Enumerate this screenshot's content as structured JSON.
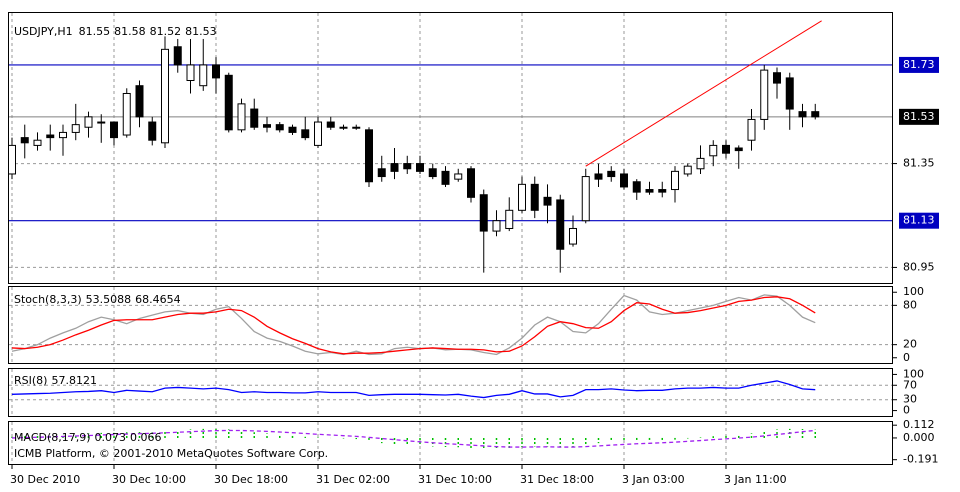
{
  "chart_data": [
    {
      "type": "candlestick",
      "symbol": "USDJPY,H1",
      "categories": [
        "30 Dec 2010",
        null,
        null,
        null,
        null,
        null,
        null,
        null,
        "30 Dec 10:00",
        null,
        null,
        null,
        null,
        null,
        null,
        null,
        "30 Dec 18:00",
        null,
        null,
        null,
        null,
        null,
        null,
        null,
        "31 Dec 02:00",
        null,
        null,
        null,
        null,
        null,
        null,
        null,
        "31 Dec 10:00",
        null,
        null,
        null,
        null,
        null,
        null,
        null,
        "31 Dec 18:00",
        null,
        null,
        null,
        null,
        null,
        null,
        null,
        "3 Jan 03:00",
        null,
        null,
        null,
        null,
        null,
        null,
        null,
        "3 Jan 11:00",
        null,
        null,
        null,
        null,
        null,
        null,
        null
      ],
      "open": [
        81.31,
        81.45,
        81.42,
        81.46,
        81.45,
        81.47,
        81.49,
        81.51,
        81.51,
        81.46,
        81.65,
        81.51,
        81.43,
        81.8,
        81.67,
        81.65,
        81.73,
        81.69,
        81.48,
        81.56,
        81.5,
        81.5,
        81.49,
        81.48,
        81.42,
        81.51,
        81.49,
        81.49,
        81.48,
        81.33,
        81.35,
        81.35,
        81.35,
        81.33,
        81.32,
        81.29,
        81.33,
        81.23,
        81.09,
        81.1,
        81.17,
        81.27,
        81.22,
        81.21,
        81.04,
        81.13,
        81.31,
        81.32,
        81.31,
        81.28,
        81.25,
        81.25,
        81.25,
        81.31,
        81.33,
        81.38,
        81.42,
        81.41,
        81.44,
        81.52,
        81.7,
        81.68,
        81.55,
        81.55
      ],
      "high": [
        81.45,
        81.5,
        81.47,
        81.5,
        81.5,
        81.58,
        81.55,
        81.54,
        81.51,
        81.64,
        81.67,
        81.53,
        81.84,
        81.83,
        81.83,
        81.83,
        81.76,
        81.7,
        81.6,
        81.6,
        81.53,
        81.51,
        81.5,
        81.53,
        81.53,
        81.53,
        81.5,
        81.5,
        81.49,
        81.38,
        81.41,
        81.38,
        81.38,
        81.35,
        81.34,
        81.33,
        81.34,
        81.25,
        81.17,
        81.22,
        81.3,
        81.3,
        81.27,
        81.23,
        81.15,
        81.33,
        81.35,
        81.34,
        81.33,
        81.29,
        81.28,
        81.28,
        81.34,
        81.35,
        81.42,
        81.44,
        81.44,
        81.42,
        81.56,
        81.73,
        81.72,
        81.7,
        81.58,
        81.58
      ],
      "low": [
        81.29,
        81.37,
        81.4,
        81.4,
        81.38,
        81.44,
        81.45,
        81.43,
        81.42,
        81.45,
        81.49,
        81.42,
        81.41,
        81.7,
        81.62,
        81.63,
        81.62,
        81.47,
        81.47,
        81.48,
        81.47,
        81.47,
        81.46,
        81.44,
        81.41,
        81.48,
        81.48,
        81.48,
        81.26,
        81.28,
        81.29,
        81.31,
        81.31,
        81.29,
        81.26,
        81.28,
        81.2,
        80.93,
        81.07,
        81.09,
        81.16,
        81.14,
        81.12,
        80.93,
        81.03,
        81.12,
        81.26,
        81.28,
        81.25,
        81.21,
        81.23,
        81.22,
        81.2,
        81.3,
        81.31,
        81.34,
        81.37,
        81.33,
        81.4,
        81.48,
        81.6,
        81.48,
        81.49,
        81.52
      ],
      "close": [
        81.42,
        81.43,
        81.44,
        81.45,
        81.47,
        81.5,
        81.53,
        81.51,
        81.45,
        81.62,
        81.53,
        81.44,
        81.79,
        81.73,
        81.73,
        81.73,
        81.68,
        81.48,
        81.58,
        81.49,
        81.49,
        81.48,
        81.47,
        81.45,
        81.51,
        81.49,
        81.49,
        81.49,
        81.28,
        81.3,
        81.32,
        81.33,
        81.32,
        81.3,
        81.27,
        81.31,
        81.22,
        81.09,
        81.13,
        81.17,
        81.27,
        81.17,
        81.19,
        81.02,
        81.1,
        81.3,
        81.29,
        81.3,
        81.26,
        81.24,
        81.24,
        81.24,
        81.32,
        81.34,
        81.37,
        81.42,
        81.39,
        81.4,
        81.52,
        81.71,
        81.66,
        81.56,
        81.53,
        81.53
      ],
      "color_up": "#ffffff",
      "color_down": "#000000",
      "ylim": [
        80.89,
        81.93
      ],
      "yticks": [
        81.35,
        80.95
      ],
      "grid": true,
      "hlines": {
        "values": [
          81.73,
          81.13
        ],
        "color": "#0000c0"
      },
      "trendline": {
        "x": [
          45,
          63.5
        ],
        "y": [
          81.34,
          81.9
        ],
        "color": "#ff0000"
      }
    },
    {
      "type": "line",
      "title": "Stoch(8,3,3)",
      "series": [
        {
          "color": "#a0a0a0",
          "style": "solid",
          "values": [
            10,
            14,
            20,
            30,
            38,
            45,
            55,
            62,
            58,
            52,
            60,
            65,
            70,
            72,
            68,
            66,
            74,
            78,
            60,
            40,
            30,
            25,
            18,
            10,
            6,
            8,
            5,
            10,
            5,
            6,
            14,
            16,
            14,
            15,
            12,
            13,
            12,
            8,
            5,
            15,
            30,
            50,
            62,
            55,
            40,
            38,
            52,
            74,
            95,
            88,
            70,
            66,
            68,
            72,
            76,
            80,
            86,
            92,
            88,
            96,
            94,
            80,
            62,
            53.5088
          ]
        },
        {
          "color": "#ff0000",
          "style": "solid",
          "values": [
            15,
            14,
            16,
            20,
            27,
            35,
            42,
            50,
            57,
            58,
            58,
            58,
            62,
            66,
            68,
            68,
            70,
            74,
            72,
            62,
            48,
            38,
            29,
            22,
            14,
            9,
            6,
            7,
            7,
            8,
            10,
            12,
            14,
            15,
            14,
            13,
            13,
            12,
            9,
            10,
            18,
            32,
            48,
            55,
            52,
            46,
            45,
            55,
            72,
            84,
            82,
            74,
            68,
            69,
            72,
            76,
            80,
            86,
            88,
            92,
            93,
            90,
            80,
            68.4654
          ]
        }
      ],
      "ylim": [
        -8,
        108
      ],
      "yticks": [
        100,
        80,
        20,
        0
      ],
      "levels": [
        80,
        20
      ]
    },
    {
      "type": "line",
      "title": "RSI(8)",
      "series": [
        {
          "color": "#0000ff",
          "style": "solid",
          "values": [
            45,
            46,
            47,
            48,
            50,
            52,
            53,
            55,
            50,
            56,
            54,
            52,
            62,
            64,
            62,
            60,
            62,
            58,
            50,
            52,
            50,
            50,
            49,
            49,
            52,
            50,
            50,
            50,
            42,
            44,
            45,
            45,
            45,
            44,
            43,
            45,
            40,
            36,
            42,
            45,
            55,
            46,
            46,
            38,
            42,
            58,
            58,
            60,
            57,
            55,
            56,
            56,
            60,
            62,
            62,
            64,
            62,
            62,
            70,
            76,
            82,
            72,
            60,
            57.8121
          ]
        }
      ],
      "ylim": [
        -15,
        115
      ],
      "yticks": [
        100,
        70,
        30,
        0
      ],
      "levels": [
        70,
        30
      ]
    },
    {
      "type": "line",
      "title": "MACD(8,17,9)",
      "series": [
        {
          "color": "#00c000",
          "style": "histogram",
          "values": [
            0.01,
            0.015,
            0.02,
            0.025,
            0.03,
            0.035,
            0.04,
            0.045,
            0.045,
            0.05,
            0.055,
            0.05,
            0.06,
            0.07,
            0.075,
            0.08,
            0.08,
            0.075,
            0.06,
            0.05,
            0.04,
            0.03,
            0.02,
            0.01,
            0.005,
            0.0,
            -0.005,
            -0.01,
            -0.03,
            -0.045,
            -0.055,
            -0.065,
            -0.07,
            -0.075,
            -0.08,
            -0.082,
            -0.09,
            -0.1,
            -0.1,
            -0.095,
            -0.08,
            -0.075,
            -0.075,
            -0.085,
            -0.08,
            -0.06,
            -0.045,
            -0.035,
            -0.03,
            -0.03,
            -0.028,
            -0.025,
            -0.015,
            -0.005,
            0.005,
            0.015,
            0.02,
            0.025,
            0.04,
            0.06,
            0.075,
            0.08,
            0.078,
            0.073
          ]
        },
        {
          "color": "#a020f0",
          "style": "dashed",
          "values": [
            0.0,
            0.003,
            0.006,
            0.009,
            0.013,
            0.017,
            0.021,
            0.026,
            0.03,
            0.034,
            0.038,
            0.041,
            0.045,
            0.05,
            0.055,
            0.06,
            0.064,
            0.066,
            0.065,
            0.062,
            0.058,
            0.052,
            0.046,
            0.039,
            0.032,
            0.026,
            0.02,
            0.014,
            0.005,
            -0.005,
            -0.015,
            -0.025,
            -0.034,
            -0.042,
            -0.05,
            -0.056,
            -0.063,
            -0.07,
            -0.076,
            -0.08,
            -0.08,
            -0.079,
            -0.078,
            -0.08,
            -0.08,
            -0.076,
            -0.07,
            -0.063,
            -0.057,
            -0.051,
            -0.047,
            -0.042,
            -0.037,
            -0.03,
            -0.023,
            -0.015,
            -0.008,
            -0.001,
            0.007,
            0.018,
            0.03,
            0.042,
            0.055,
            0.066
          ]
        }
      ],
      "ylim": [
        -0.22,
        0.14
      ],
      "yticks": [
        0.112,
        {
          "value": 0,
          "label": "0.000"
        },
        -0.191
      ],
      "watermark": "ICMB Platform, © 2001-2010 MetaQuotes Software Corp."
    }
  ]
}
